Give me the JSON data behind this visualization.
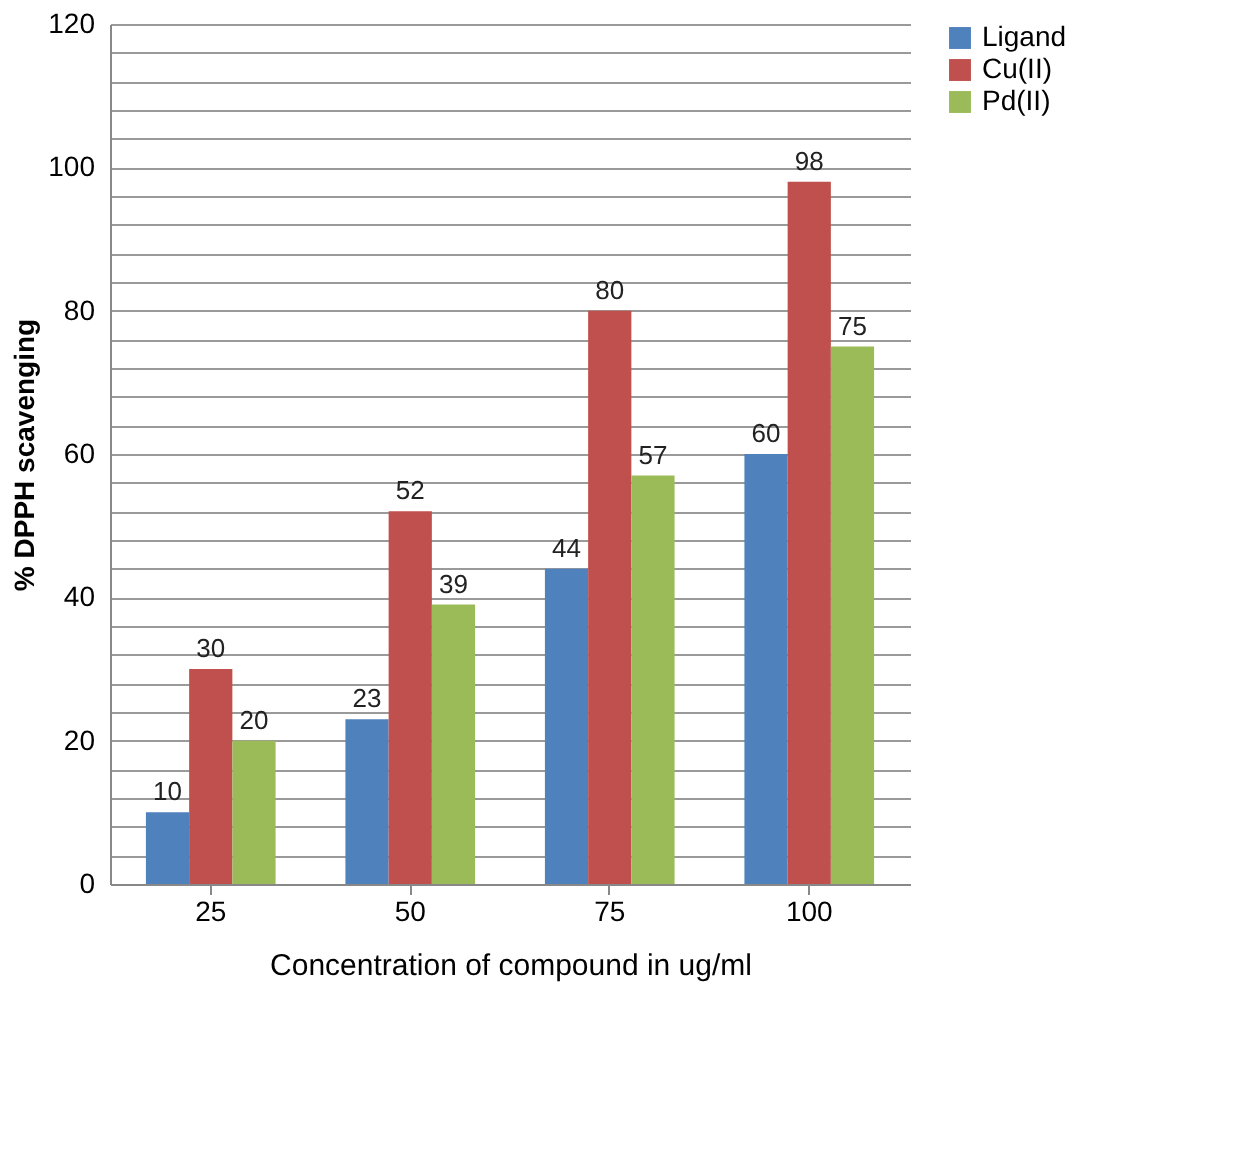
{
  "chart_data": {
    "type": "bar",
    "xlabel": "Concentration of compound in ug/ml",
    "ylabel": "% DPPH scavenging",
    "categories": [
      "25",
      "50",
      "75",
      "100"
    ],
    "series": [
      {
        "name": "Ligand",
        "color": "#4f81bd",
        "values": [
          10,
          23,
          44,
          60
        ]
      },
      {
        "name": "Cu(II)",
        "color": "#c0504d",
        "values": [
          30,
          52,
          80,
          98
        ]
      },
      {
        "name": "Pd(II)",
        "color": "#9bbb59",
        "values": [
          20,
          39,
          57,
          75
        ]
      }
    ],
    "ylim": [
      0,
      120
    ],
    "yticks": [
      0,
      {
        "value": 4,
        "label": null
      },
      {
        "value": 8,
        "label": null
      },
      {
        "value": 12,
        "label": null
      },
      {
        "value": 16,
        "label": null
      },
      20,
      {
        "value": 24,
        "label": null
      },
      {
        "value": 28,
        "label": null
      },
      {
        "value": 32,
        "label": null
      },
      {
        "value": 36,
        "label": null
      },
      40,
      {
        "value": 44,
        "label": null
      },
      {
        "value": 48,
        "label": null
      },
      {
        "value": 52,
        "label": null
      },
      {
        "value": 56,
        "label": null
      },
      60,
      {
        "value": 64,
        "label": null
      },
      {
        "value": 68,
        "label": null
      },
      {
        "value": 72,
        "label": null
      },
      {
        "value": 76,
        "label": null
      },
      80,
      {
        "value": 84,
        "label": null
      },
      {
        "value": 88,
        "label": null
      },
      {
        "value": 92,
        "label": null
      },
      {
        "value": 96,
        "label": null
      },
      100,
      {
        "value": 104,
        "label": null
      },
      {
        "value": 108,
        "label": null
      },
      {
        "value": 112,
        "label": null
      },
      {
        "value": 116,
        "label": null
      },
      120
    ],
    "grid": "y",
    "legend": "right",
    "data_labels": true
  }
}
